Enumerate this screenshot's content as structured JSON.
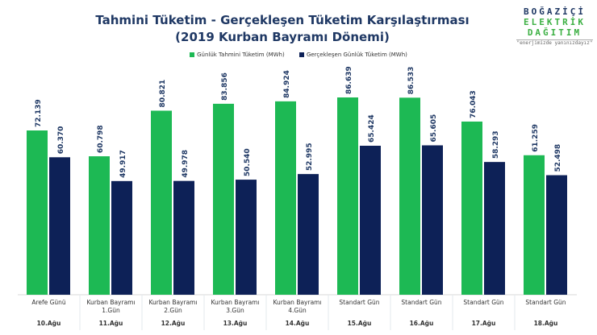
{
  "logo": {
    "line1": "BOĞAZİÇİ",
    "line2": "ELEKTRİK",
    "line3": "DAĞITIM",
    "slogan": "\"enerjimizde yanınızdayız\""
  },
  "chart_data": {
    "type": "bar",
    "title": "Tahmini Tüketim - Gerçekleşen Tüketim Karşılaştırması",
    "subtitle": "(2019 Kurban Bayramı Dönemi)",
    "legend_position": "top",
    "grid": false,
    "categories": [
      {
        "label": [
          "Arefe Günü"
        ],
        "date": "10.Ağu"
      },
      {
        "label": [
          "Kurban Bayramı",
          "1.Gün"
        ],
        "date": "11.Ağu"
      },
      {
        "label": [
          "Kurban Bayramı",
          "2.Gün"
        ],
        "date": "12.Ağu"
      },
      {
        "label": [
          "Kurban Bayramı",
          "3.Gün"
        ],
        "date": "13.Ağu"
      },
      {
        "label": [
          "Kurban Bayramı",
          "4.Gün"
        ],
        "date": "14.Ağu"
      },
      {
        "label": [
          "Standart Gün"
        ],
        "date": "15.Ağu"
      },
      {
        "label": [
          "Standart Gün"
        ],
        "date": "16.Ağu"
      },
      {
        "label": [
          "Standart Gün"
        ],
        "date": "17.Ağu"
      },
      {
        "label": [
          "Standart Gün"
        ],
        "date": "18.Ağu"
      }
    ],
    "ylim": [
      0,
      100
    ],
    "series": [
      {
        "name": "Günlük Tahmini Tüketim (MWh)",
        "color": "#1db954",
        "values": [
          72.139,
          60.798,
          80.821,
          83.856,
          84.924,
          86.639,
          86.533,
          76.043,
          61.259
        ]
      },
      {
        "name": "Gerçekleşen Günlük Tüketim (MWh)",
        "color": "#0d2157",
        "values": [
          60.37,
          49.917,
          49.978,
          50.54,
          52.995,
          65.424,
          65.605,
          58.293,
          52.498
        ]
      }
    ]
  }
}
